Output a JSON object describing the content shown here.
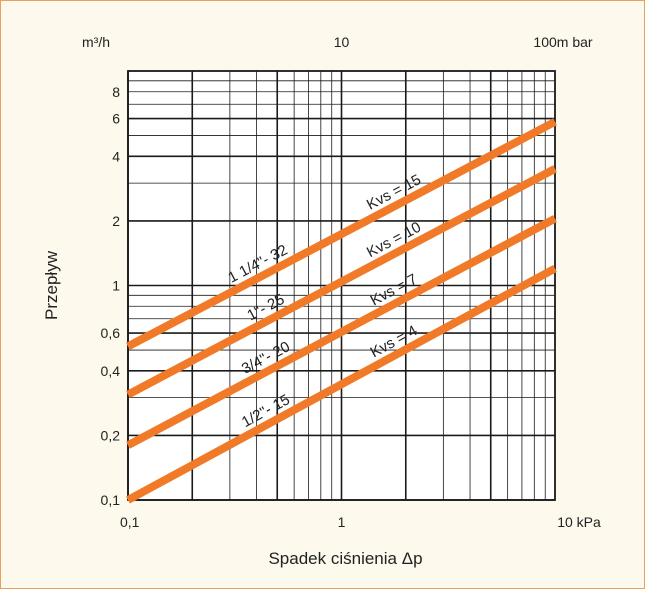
{
  "chart_data": {
    "type": "line",
    "x_scale": "log",
    "y_scale": "log",
    "xlabel": "Spadek ciśnienia  Δp",
    "ylabel": "Przepływ",
    "y_unit_label": "m³/h",
    "xlim": [
      0.1,
      10
    ],
    "ylim": [
      0.1,
      10
    ],
    "x_ticks": [
      {
        "value": 0.1,
        "label": "0,1"
      },
      {
        "value": 1,
        "label": "1"
      },
      {
        "value": 10,
        "label": "10 kPa"
      }
    ],
    "x_top_ticks": [
      {
        "value": 1,
        "label": "10"
      },
      {
        "value": 10,
        "label": "100m bar"
      }
    ],
    "y_ticks": [
      {
        "value": 0.1,
        "label": "0,1"
      },
      {
        "value": 0.2,
        "label": "0,2"
      },
      {
        "value": 0.4,
        "label": "0,4"
      },
      {
        "value": 0.6,
        "label": "0,6"
      },
      {
        "value": 1,
        "label": "1"
      },
      {
        "value": 2,
        "label": "2"
      },
      {
        "value": 4,
        "label": "4"
      },
      {
        "value": 6,
        "label": "6"
      },
      {
        "value": 8,
        "label": "8"
      }
    ],
    "series": [
      {
        "size_label": "1 1/4\"- 32",
        "kvs_label": "Kvs = 15",
        "kvs": 15,
        "x": [
          0.1,
          10
        ],
        "y": [
          0.52,
          5.8
        ]
      },
      {
        "size_label": "1\"- 25",
        "kvs_label": "Kvs = 10",
        "kvs": 10,
        "x": [
          0.1,
          10
        ],
        "y": [
          0.31,
          3.5
        ]
      },
      {
        "size_label": "3/4\"- 20",
        "kvs_label": "Kvs = 7",
        "kvs": 7,
        "x": [
          0.1,
          10
        ],
        "y": [
          0.18,
          2.05
        ]
      },
      {
        "size_label": "1/2\"- 15",
        "kvs_label": "Kvs = 4",
        "kvs": 4,
        "x": [
          0.1,
          10
        ],
        "y": [
          0.1,
          1.2
        ]
      }
    ],
    "grid": true,
    "line_color": "#f07a28",
    "grid_color": "#1a1a1a"
  }
}
